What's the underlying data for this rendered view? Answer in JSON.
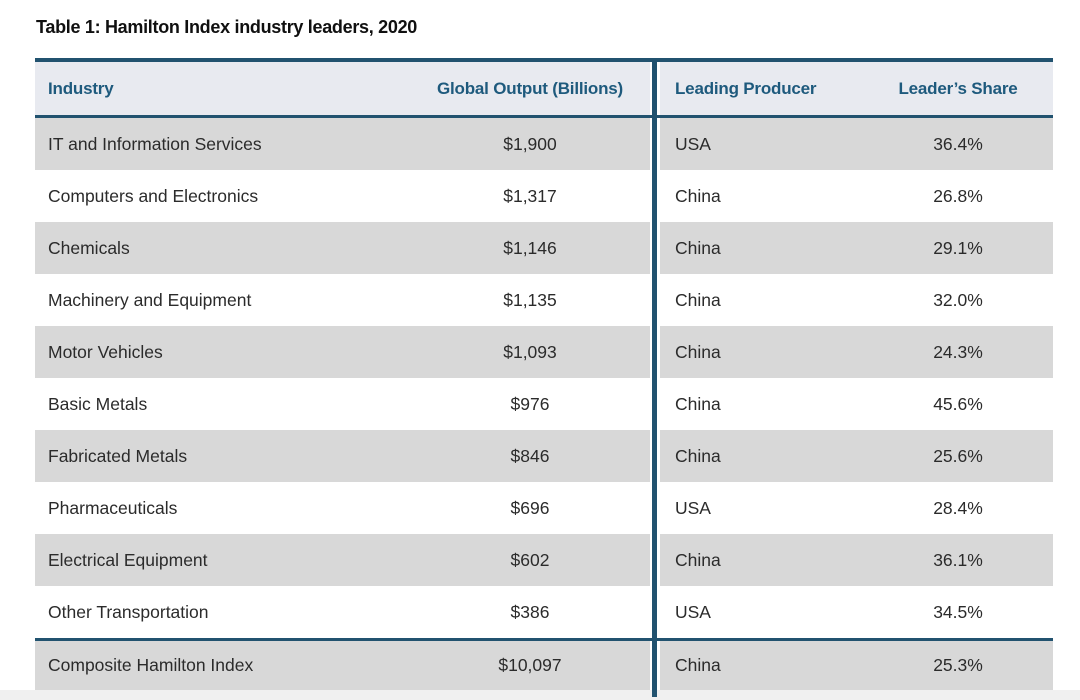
{
  "title": "Table 1: Hamilton Index industry leaders, 2020",
  "colors": {
    "accent_line": "#21526f",
    "header_bg": "#e8eaf0",
    "header_text": "#1e5a7d",
    "row_alt_bg": "#d8d8d8",
    "row_bg": "#ffffff",
    "body_text": "#2b2b2b",
    "title_text": "#101010",
    "bottom_strip": "#f0f0f0"
  },
  "chart_data": {
    "type": "table",
    "title": "Table 1: Hamilton Index industry leaders, 2020",
    "columns": [
      "Industry",
      "Global Output (Billions)",
      "Leading Producer",
      "Leader’s Share"
    ],
    "rows": [
      [
        "IT and Information Services",
        "$1,900",
        "USA",
        "36.4%"
      ],
      [
        "Computers and Electronics",
        "$1,317",
        "China",
        "26.8%"
      ],
      [
        "Chemicals",
        "$1,146",
        "China",
        "29.1%"
      ],
      [
        "Machinery and Equipment",
        "$1,135",
        "China",
        "32.0%"
      ],
      [
        "Motor Vehicles",
        "$1,093",
        "China",
        "24.3%"
      ],
      [
        "Basic Metals",
        "$976",
        "China",
        "45.6%"
      ],
      [
        "Fabricated Metals",
        "$846",
        "China",
        "25.6%"
      ],
      [
        "Pharmaceuticals",
        "$696",
        "USA",
        "28.4%"
      ],
      [
        "Electrical Equipment",
        "$602",
        "China",
        "36.1%"
      ],
      [
        "Other Transportation",
        "$386",
        "USA",
        "34.5%"
      ]
    ],
    "footer_row": [
      "Composite Hamilton Index",
      "$10,097",
      "China",
      "25.3%"
    ]
  }
}
